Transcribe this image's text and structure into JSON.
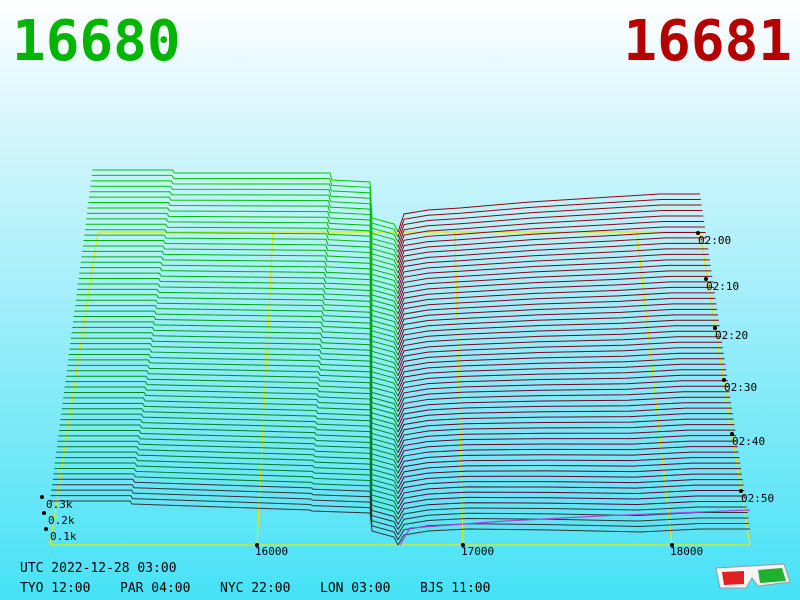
{
  "header": {
    "bid": "16680",
    "ask": "16681"
  },
  "price_axis": [
    "16000",
    "17000",
    "18000"
  ],
  "depth_axis": [
    "0.3k",
    "0.2k",
    "0.1k"
  ],
  "time_axis": [
    "02:00",
    "02:10",
    "02:20",
    "02:30",
    "02:40",
    "02:50"
  ],
  "footer": {
    "utc": "UTC 2022-12-28 03:00",
    "zones": [
      "TYO 12:00",
      "PAR 04:00",
      "NYC 22:00",
      "LON 03:00",
      "BJS 11:00"
    ]
  }
}
